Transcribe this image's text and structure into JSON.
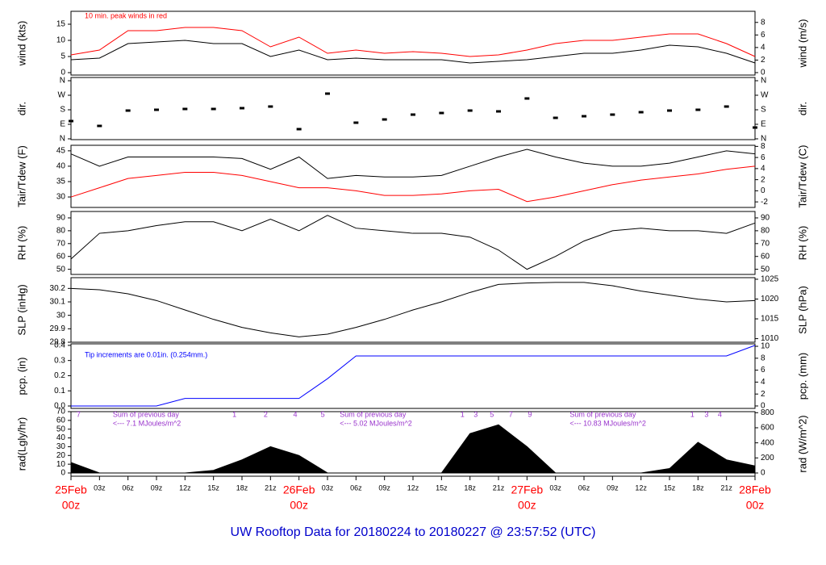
{
  "title": "UW Rooftop Data for 20180224  to  20180227 @ 23:57:52  (UTC)",
  "chart_data": [
    {
      "type": "line",
      "y_label": "wind (kts)",
      "y2_label": "wind (m/s)",
      "annotation": "10 min. peak winds in red",
      "x": [
        0,
        3,
        6,
        9,
        12,
        15,
        18,
        21,
        24,
        27,
        30,
        33,
        36,
        39,
        42,
        45,
        48,
        51,
        54,
        57,
        60,
        63,
        66,
        69,
        72
      ],
      "ylim": [
        -0.75,
        19
      ],
      "yticks": [
        0,
        5,
        10,
        15
      ],
      "y2lim": [
        -0.39,
        9.77
      ],
      "y2ticks": [
        0,
        2,
        4,
        6,
        8
      ],
      "series": [
        {
          "name": "10 min. peak",
          "color": "#ff0000",
          "values": [
            5.5,
            7,
            13,
            13,
            14,
            14,
            13,
            8,
            11,
            6,
            7,
            6,
            6.5,
            6,
            5,
            5.5,
            7,
            9,
            10,
            10,
            11,
            12,
            12,
            9,
            5
          ]
        },
        {
          "name": "wind",
          "color": "#000000",
          "values": [
            4,
            4.5,
            9,
            9.5,
            10,
            9,
            9,
            5,
            7,
            4,
            4.5,
            4,
            4,
            4,
            3,
            3.5,
            4,
            5,
            6,
            6,
            7,
            8.5,
            8,
            6,
            3
          ]
        }
      ]
    },
    {
      "type": "scatter",
      "y_label": "dir.",
      "y2_label": "dir.",
      "x": [
        0,
        3,
        6,
        9,
        12,
        15,
        18,
        21,
        24,
        27,
        30,
        33,
        36,
        39,
        42,
        45,
        48,
        51,
        54,
        57,
        60,
        63,
        66,
        69,
        72
      ],
      "ylim": [
        -5,
        380
      ],
      "yticks": [
        {
          "value": 0,
          "label": "N"
        },
        {
          "value": 90,
          "label": "E"
        },
        {
          "value": 180,
          "label": "S"
        },
        {
          "value": 270,
          "label": "W"
        },
        {
          "value": 360,
          "label": "N"
        }
      ],
      "y2lim": [
        -5,
        380
      ],
      "y2ticks": [
        {
          "value": 0,
          "label": "N"
        },
        {
          "value": 90,
          "label": "E"
        },
        {
          "value": 180,
          "label": "S"
        },
        {
          "value": 270,
          "label": "W"
        },
        {
          "value": 360,
          "label": "N"
        }
      ],
      "series": [
        {
          "name": "dir",
          "color": "#000000",
          "values": [
            110,
            80,
            175,
            180,
            185,
            185,
            190,
            200,
            60,
            280,
            100,
            120,
            150,
            160,
            175,
            170,
            250,
            130,
            140,
            150,
            165,
            175,
            180,
            200,
            70
          ]
        }
      ]
    },
    {
      "type": "line",
      "y_label": "Tair/Tdew (F)",
      "y2_label": "Tair/Tdew (C)",
      "x": [
        0,
        3,
        6,
        9,
        12,
        15,
        18,
        21,
        24,
        27,
        30,
        33,
        36,
        39,
        42,
        45,
        48,
        51,
        54,
        57,
        60,
        63,
        66,
        69,
        72
      ],
      "ylim": [
        26.6,
        46.8
      ],
      "yticks": [
        30,
        35,
        40,
        45
      ],
      "y2lim": [
        -3,
        8.2
      ],
      "y2ticks": [
        -2,
        0,
        2,
        4,
        6,
        8
      ],
      "series": [
        {
          "name": "Tair",
          "color": "#000000",
          "values": [
            44,
            40,
            43,
            43,
            43,
            43,
            42.5,
            39,
            43,
            36,
            37,
            36.5,
            36.5,
            37,
            40,
            43,
            45.5,
            43,
            41,
            40,
            40,
            41,
            43,
            45,
            44
          ]
        },
        {
          "name": "Tdew",
          "color": "#ff0000",
          "values": [
            30,
            33,
            36,
            37,
            38,
            38,
            37,
            35,
            33,
            33,
            32,
            30.5,
            30.5,
            31,
            32,
            32.5,
            28.5,
            30,
            32,
            34,
            35.5,
            36.5,
            37.5,
            39,
            40
          ]
        }
      ]
    },
    {
      "type": "line",
      "y_label": "RH (%)",
      "y2_label": "RH (%)",
      "x": [
        0,
        3,
        6,
        9,
        12,
        15,
        18,
        21,
        24,
        27,
        30,
        33,
        36,
        39,
        42,
        45,
        48,
        51,
        54,
        57,
        60,
        63,
        66,
        69,
        72
      ],
      "ylim": [
        46,
        95
      ],
      "yticks": [
        50,
        60,
        70,
        80,
        90
      ],
      "y2lim": [
        46,
        95
      ],
      "y2ticks": [
        50,
        60,
        70,
        80,
        90
      ],
      "series": [
        {
          "name": "RH",
          "color": "#000000",
          "values": [
            58,
            78,
            80,
            84,
            87,
            87,
            80,
            89,
            80,
            92,
            82,
            80,
            78,
            78,
            75,
            65,
            50,
            60,
            72,
            80,
            82,
            80,
            80,
            78,
            86
          ]
        }
      ]
    },
    {
      "type": "line",
      "y_label": "SLP (inHg)",
      "y2_label": "SLP (hPa)",
      "x": [
        0,
        3,
        6,
        9,
        12,
        15,
        18,
        21,
        24,
        27,
        30,
        33,
        36,
        39,
        42,
        45,
        48,
        51,
        54,
        57,
        60,
        63,
        66,
        69,
        72
      ],
      "ylim": [
        29.8,
        30.28
      ],
      "yticks": [
        29.8,
        29.9,
        30.0,
        30.1,
        30.2
      ],
      "y2lim": [
        1009.1,
        1025.4
      ],
      "y2ticks": [
        1010,
        1015,
        1020,
        1025
      ],
      "series": [
        {
          "name": "SLP",
          "color": "#000000",
          "values": [
            30.2,
            30.19,
            30.16,
            30.11,
            30.04,
            29.97,
            29.91,
            29.87,
            29.84,
            29.86,
            29.91,
            29.97,
            30.04,
            30.1,
            30.17,
            30.23,
            30.24,
            30.245,
            30.245,
            30.22,
            30.18,
            30.15,
            30.12,
            30.1,
            30.11
          ]
        }
      ]
    },
    {
      "type": "line",
      "y_label": "pcp. (in)",
      "y2_label": "pcp. (mm)",
      "annotation": "Tip increments are 0.01in. (0.254mm.)",
      "x": [
        0,
        3,
        6,
        9,
        12,
        15,
        18,
        21,
        24,
        27,
        30,
        33,
        36,
        39,
        42,
        45,
        48,
        51,
        54,
        57,
        60,
        63,
        66,
        69,
        72
      ],
      "ylim": [
        -0.016,
        0.41
      ],
      "yticks": [
        {
          "value": 0,
          "label": "0.0"
        },
        0.1,
        0.2,
        0.3,
        0.4
      ],
      "y2lim": [
        -0.41,
        10.41
      ],
      "y2ticks": [
        0,
        2,
        4,
        6,
        8,
        10
      ],
      "series": [
        {
          "name": "pcp",
          "color": "#0000ff",
          "values": [
            0,
            0,
            0,
            0,
            0.05,
            0.05,
            0.05,
            0.05,
            0.05,
            0.18,
            0.33,
            0.33,
            0.33,
            0.33,
            0.33,
            0.33,
            0.33,
            0.33,
            0.33,
            0.33,
            0.33,
            0.33,
            0.33,
            0.33,
            0.4
          ]
        }
      ]
    },
    {
      "type": "area",
      "y_label": "rad(Lgly/hr)",
      "y2_label": "rad (W/m^2)",
      "x": [
        0,
        3,
        6,
        9,
        12,
        15,
        18,
        21,
        24,
        27,
        30,
        33,
        36,
        39,
        42,
        45,
        48,
        51,
        54,
        57,
        60,
        63,
        66,
        69,
        72
      ],
      "ylim": [
        -3.7,
        70
      ],
      "yticks": [
        0,
        10,
        20,
        30,
        40,
        50,
        60,
        70
      ],
      "y2lim": [
        -43,
        814
      ],
      "y2ticks": [
        0,
        200,
        400,
        600,
        800
      ],
      "series": [
        {
          "name": "rad",
          "color": "#000000",
          "values": [
            12,
            0,
            0,
            0,
            0,
            3,
            15,
            30,
            20,
            0,
            0,
            0,
            0,
            0,
            45,
            55,
            30,
            0,
            0,
            0,
            0,
            5,
            35,
            15,
            8
          ]
        }
      ],
      "notes": [
        {
          "x": 4.4,
          "lines": [
            "Sum of previous day",
            "<--- 7.1 MJoules/m^2"
          ]
        },
        {
          "x": 28.3,
          "lines": [
            "Sum of previous day",
            "<--- 5.02 MJoules/m^2"
          ]
        },
        {
          "x": 52.5,
          "lines": [
            "Sum of previous day",
            "<--- 10.83 MJoules/m^2"
          ]
        }
      ],
      "hour_labels": [
        {
          "x": 0.8,
          "label": "7"
        },
        {
          "x": 17.2,
          "label": "1"
        },
        {
          "x": 20.5,
          "label": "2"
        },
        {
          "x": 23.6,
          "label": "4"
        },
        {
          "x": 26.5,
          "label": "5"
        },
        {
          "x": 41.2,
          "label": "1"
        },
        {
          "x": 42.6,
          "label": "3"
        },
        {
          "x": 44.3,
          "label": "5"
        },
        {
          "x": 46.3,
          "label": "7"
        },
        {
          "x": 48.3,
          "label": "9"
        },
        {
          "x": 65.4,
          "label": "1"
        },
        {
          "x": 66.9,
          "label": "3"
        },
        {
          "x": 68.3,
          "label": "4"
        }
      ],
      "xlim": [
        0,
        72
      ],
      "xticks": [
        {
          "value": 0,
          "label": "00z"
        },
        {
          "value": 3,
          "label": "03z"
        },
        {
          "value": 6,
          "label": "06z"
        },
        {
          "value": 9,
          "label": "09z"
        },
        {
          "value": 12,
          "label": "12z"
        },
        {
          "value": 15,
          "label": "15z"
        },
        {
          "value": 18,
          "label": "18z"
        },
        {
          "value": 21,
          "label": "21z"
        },
        {
          "value": 24,
          "label": "00z"
        },
        {
          "value": 27,
          "label": "03z"
        },
        {
          "value": 30,
          "label": "06z"
        },
        {
          "value": 33,
          "label": "09z"
        },
        {
          "value": 36,
          "label": "12z"
        },
        {
          "value": 39,
          "label": "15z"
        },
        {
          "value": 42,
          "label": "18z"
        },
        {
          "value": 45,
          "label": "21z"
        },
        {
          "value": 48,
          "label": "00z"
        },
        {
          "value": 51,
          "label": "03z"
        },
        {
          "value": 54,
          "label": "06z"
        },
        {
          "value": 57,
          "label": "09z"
        },
        {
          "value": 60,
          "label": "12z"
        },
        {
          "value": 63,
          "label": "15z"
        },
        {
          "value": 66,
          "label": "18z"
        },
        {
          "value": 69,
          "label": "21z"
        },
        {
          "value": 72,
          "label": "00z"
        }
      ],
      "days": [
        {
          "value": 0,
          "label": "25Feb"
        },
        {
          "value": 24,
          "label": "26Feb"
        },
        {
          "value": 48,
          "label": "27Feb"
        },
        {
          "value": 72,
          "label": "28Feb"
        }
      ]
    }
  ]
}
